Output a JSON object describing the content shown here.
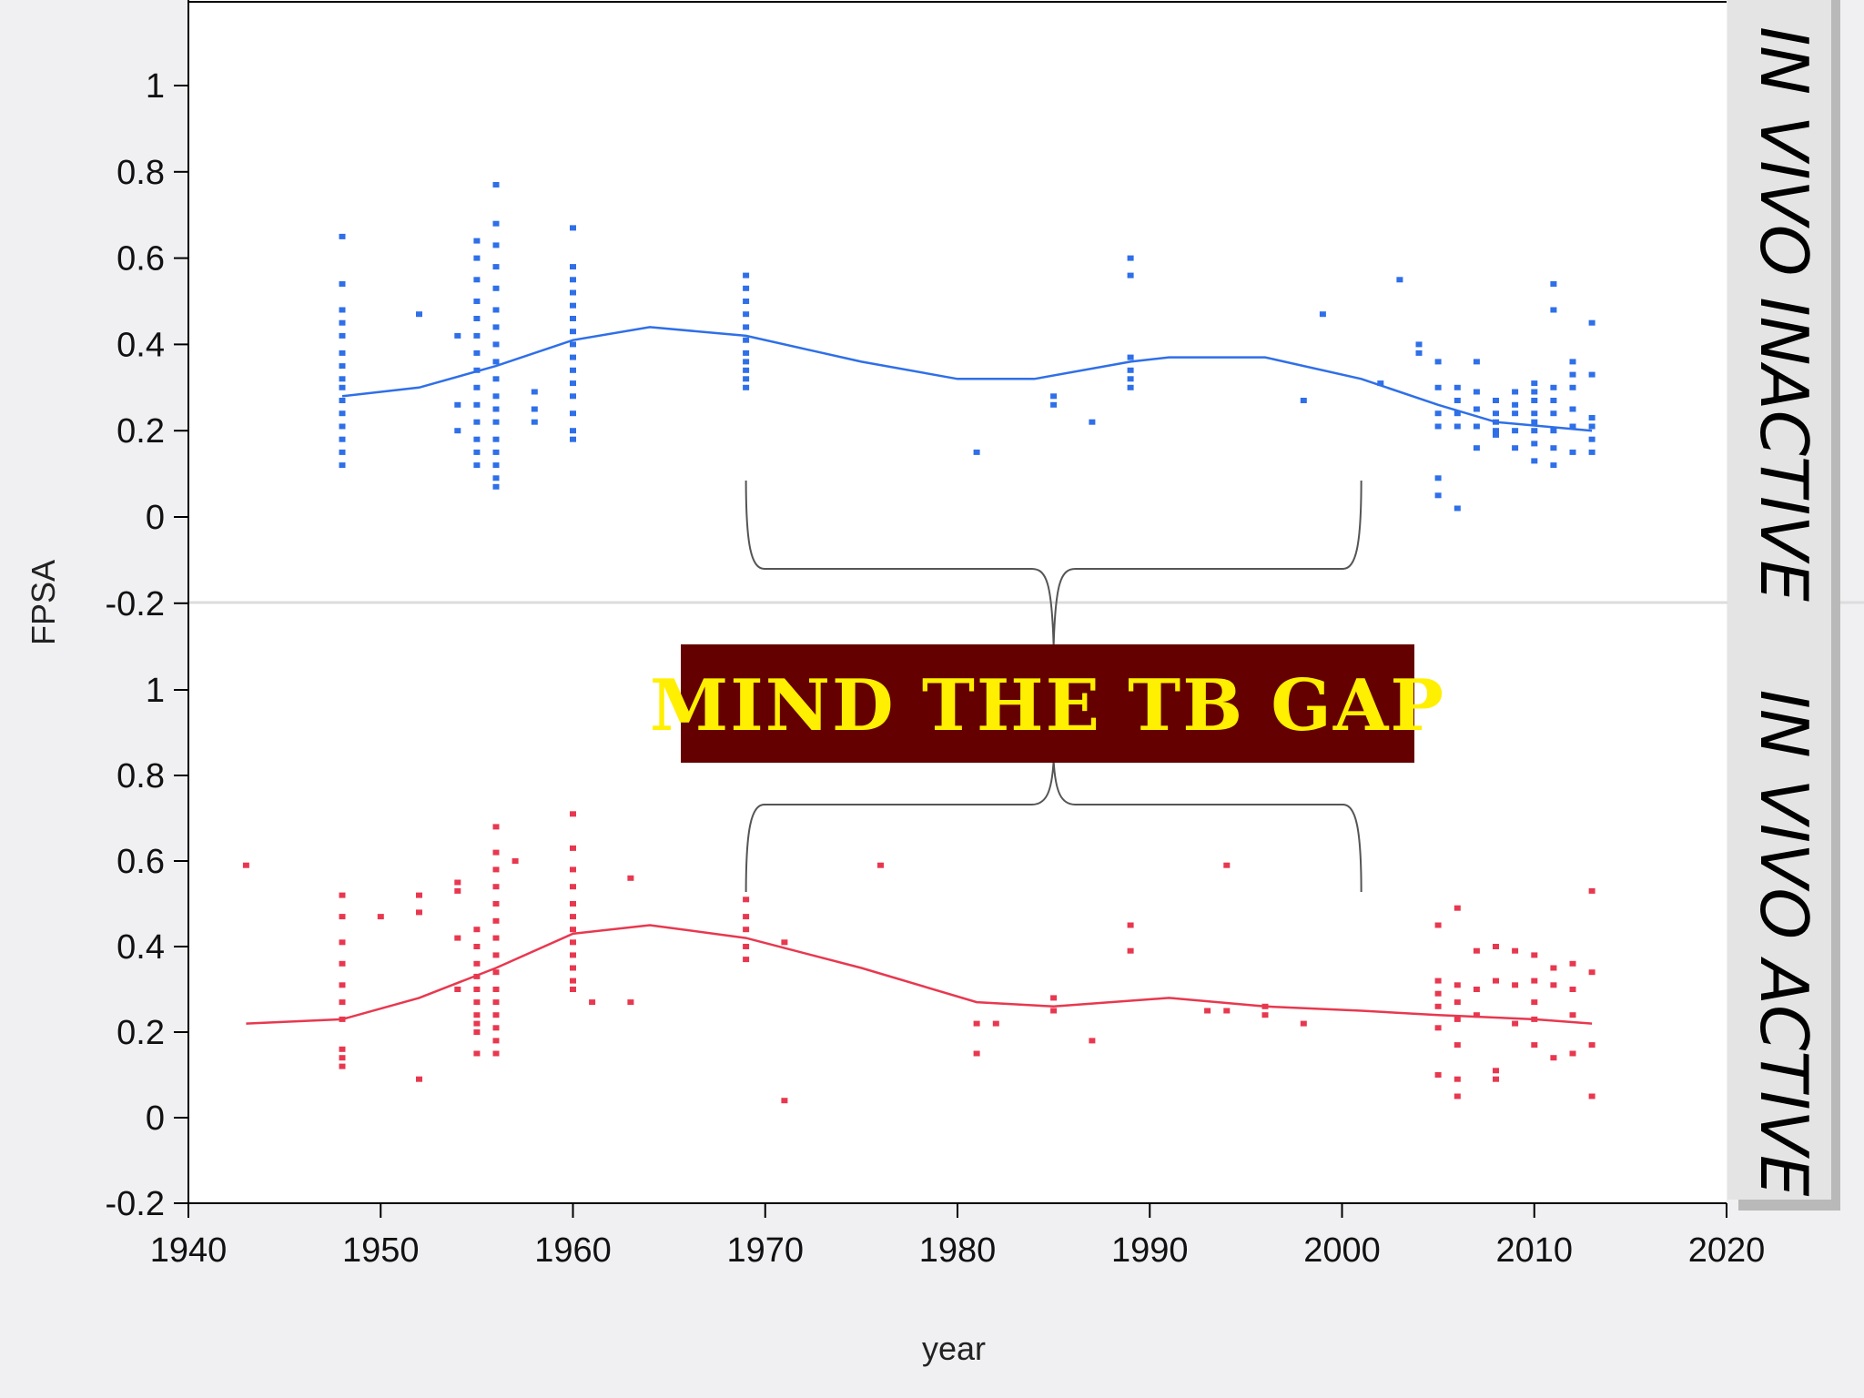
{
  "chart_data": {
    "type": "scatter",
    "xlabel": "year",
    "ylabel": "FPSA",
    "xlim": [
      1940,
      2020
    ],
    "x_ticks": [
      "1940",
      "1950",
      "1960",
      "1970",
      "1980",
      "1990",
      "2000",
      "2010",
      "2020"
    ],
    "y_ticks": [
      "-0.2",
      "0",
      "0.2",
      "0.4",
      "0.6",
      "0.8",
      "1"
    ],
    "grid": false,
    "annotation": "MIND THE TB GAP",
    "annotation_gap_years": [
      1969,
      2001
    ],
    "panels": [
      {
        "label": "IN VIVO INACTIVE",
        "color": "#2f6fe8",
        "ylim": [
          -0.2,
          1.2
        ],
        "trend": {
          "x": [
            1948,
            1952,
            1956,
            1960,
            1964,
            1969,
            1975,
            1980,
            1984,
            1989,
            1991,
            1996,
            2001,
            2005,
            2008,
            2013
          ],
          "y": [
            0.28,
            0.3,
            0.35,
            0.41,
            0.44,
            0.42,
            0.36,
            0.32,
            0.32,
            0.36,
            0.37,
            0.37,
            0.32,
            0.26,
            0.22,
            0.2
          ]
        },
        "points": {
          "x": [
            1948,
            1948,
            1948,
            1948,
            1948,
            1948,
            1948,
            1948,
            1948,
            1948,
            1948,
            1948,
            1948,
            1948,
            1948,
            1952,
            1954,
            1954,
            1954,
            1955,
            1955,
            1955,
            1955,
            1955,
            1955,
            1955,
            1955,
            1955,
            1955,
            1955,
            1955,
            1955,
            1955,
            1956,
            1956,
            1956,
            1956,
            1956,
            1956,
            1956,
            1956,
            1956,
            1956,
            1956,
            1956,
            1956,
            1956,
            1956,
            1956,
            1956,
            1956,
            1958,
            1958,
            1958,
            1960,
            1960,
            1960,
            1960,
            1960,
            1960,
            1960,
            1960,
            1960,
            1960,
            1960,
            1960,
            1960,
            1960,
            1960,
            1969,
            1969,
            1969,
            1969,
            1969,
            1969,
            1969,
            1969,
            1969,
            1969,
            1969,
            1981,
            1985,
            1985,
            1987,
            1989,
            1989,
            1989,
            1989,
            1989,
            1989,
            1998,
            1999,
            2002,
            2003,
            2004,
            2004,
            2005,
            2005,
            2005,
            2005,
            2005,
            2005,
            2006,
            2006,
            2006,
            2006,
            2006,
            2007,
            2007,
            2007,
            2007,
            2007,
            2008,
            2008,
            2008,
            2008,
            2008,
            2009,
            2009,
            2009,
            2009,
            2009,
            2010,
            2010,
            2010,
            2010,
            2010,
            2010,
            2010,
            2010,
            2011,
            2011,
            2011,
            2011,
            2011,
            2011,
            2011,
            2011,
            2012,
            2012,
            2012,
            2012,
            2012,
            2012,
            2013,
            2013,
            2013,
            2013,
            2013,
            2013
          ],
          "y": [
            0.65,
            0.54,
            0.48,
            0.45,
            0.42,
            0.38,
            0.35,
            0.32,
            0.3,
            0.27,
            0.24,
            0.21,
            0.18,
            0.15,
            0.12,
            0.47,
            0.42,
            0.26,
            0.2,
            0.64,
            0.6,
            0.55,
            0.5,
            0.46,
            0.42,
            0.38,
            0.34,
            0.3,
            0.26,
            0.22,
            0.18,
            0.15,
            0.12,
            0.77,
            0.68,
            0.63,
            0.58,
            0.53,
            0.48,
            0.44,
            0.4,
            0.36,
            0.32,
            0.28,
            0.25,
            0.22,
            0.18,
            0.15,
            0.12,
            0.09,
            0.07,
            0.29,
            0.25,
            0.22,
            0.67,
            0.58,
            0.55,
            0.52,
            0.49,
            0.46,
            0.43,
            0.4,
            0.37,
            0.34,
            0.31,
            0.28,
            0.24,
            0.2,
            0.18,
            0.56,
            0.53,
            0.5,
            0.47,
            0.44,
            0.41,
            0.38,
            0.36,
            0.34,
            0.32,
            0.3,
            0.15,
            0.28,
            0.26,
            0.22,
            0.6,
            0.56,
            0.37,
            0.34,
            0.32,
            0.3,
            0.27,
            0.47,
            0.31,
            0.55,
            0.4,
            0.38,
            0.36,
            0.3,
            0.24,
            0.21,
            0.09,
            0.05,
            0.3,
            0.27,
            0.24,
            0.21,
            0.02,
            0.36,
            0.29,
            0.25,
            0.21,
            0.16,
            0.27,
            0.24,
            0.22,
            0.2,
            0.19,
            0.29,
            0.26,
            0.24,
            0.2,
            0.16,
            0.31,
            0.29,
            0.27,
            0.24,
            0.22,
            0.2,
            0.17,
            0.13,
            0.54,
            0.48,
            0.3,
            0.27,
            0.24,
            0.2,
            0.16,
            0.12,
            0.36,
            0.33,
            0.3,
            0.25,
            0.21,
            0.15,
            0.45,
            0.33,
            0.23,
            0.21,
            0.18,
            0.15
          ]
        }
      },
      {
        "label": "IN VIVO ACTIVE",
        "color": "#e8384f",
        "ylim": [
          -0.2,
          1.2
        ],
        "trend": {
          "x": [
            1943,
            1948,
            1952,
            1956,
            1960,
            1964,
            1969,
            1975,
            1981,
            1985,
            1991,
            1996,
            2001,
            2005,
            2010,
            2013
          ],
          "y": [
            0.22,
            0.23,
            0.28,
            0.35,
            0.43,
            0.45,
            0.42,
            0.35,
            0.27,
            0.26,
            0.28,
            0.26,
            0.25,
            0.24,
            0.23,
            0.22
          ]
        },
        "points": {
          "x": [
            1943,
            1948,
            1948,
            1948,
            1948,
            1948,
            1948,
            1948,
            1948,
            1948,
            1948,
            1950,
            1952,
            1952,
            1952,
            1954,
            1954,
            1954,
            1954,
            1955,
            1955,
            1955,
            1955,
            1955,
            1955,
            1955,
            1955,
            1955,
            1955,
            1956,
            1956,
            1956,
            1956,
            1956,
            1956,
            1956,
            1956,
            1956,
            1956,
            1956,
            1956,
            1956,
            1956,
            1956,
            1957,
            1960,
            1960,
            1960,
            1960,
            1960,
            1960,
            1960,
            1960,
            1960,
            1960,
            1960,
            1960,
            1961,
            1963,
            1963,
            1969,
            1969,
            1969,
            1969,
            1969,
            1971,
            1971,
            1976,
            1981,
            1981,
            1982,
            1985,
            1985,
            1987,
            1989,
            1989,
            1993,
            1994,
            1994,
            1996,
            1996,
            1998,
            2005,
            2005,
            2005,
            2005,
            2005,
            2005,
            2006,
            2006,
            2006,
            2006,
            2006,
            2006,
            2006,
            2007,
            2007,
            2007,
            2008,
            2008,
            2008,
            2008,
            2009,
            2009,
            2009,
            2010,
            2010,
            2010,
            2010,
            2010,
            2011,
            2011,
            2011,
            2012,
            2012,
            2012,
            2012,
            2013,
            2013,
            2013,
            2013
          ],
          "y": [
            0.59,
            0.52,
            0.47,
            0.41,
            0.36,
            0.31,
            0.27,
            0.23,
            0.16,
            0.14,
            0.12,
            0.47,
            0.52,
            0.48,
            0.09,
            0.55,
            0.53,
            0.42,
            0.3,
            0.44,
            0.4,
            0.36,
            0.33,
            0.3,
            0.27,
            0.24,
            0.22,
            0.2,
            0.15,
            0.68,
            0.62,
            0.58,
            0.54,
            0.5,
            0.46,
            0.42,
            0.38,
            0.34,
            0.3,
            0.27,
            0.24,
            0.21,
            0.18,
            0.15,
            0.6,
            0.71,
            0.63,
            0.58,
            0.54,
            0.5,
            0.47,
            0.44,
            0.41,
            0.38,
            0.35,
            0.32,
            0.3,
            0.27,
            0.56,
            0.27,
            0.51,
            0.47,
            0.44,
            0.4,
            0.37,
            0.41,
            0.04,
            0.59,
            0.22,
            0.15,
            0.22,
            0.28,
            0.25,
            0.18,
            0.45,
            0.39,
            0.25,
            0.59,
            0.25,
            0.24,
            0.26,
            0.22,
            0.45,
            0.32,
            0.29,
            0.26,
            0.21,
            0.1,
            0.49,
            0.31,
            0.27,
            0.23,
            0.17,
            0.09,
            0.05,
            0.39,
            0.3,
            0.24,
            0.4,
            0.32,
            0.11,
            0.09,
            0.39,
            0.31,
            0.22,
            0.38,
            0.32,
            0.27,
            0.23,
            0.17,
            0.35,
            0.31,
            0.14,
            0.36,
            0.3,
            0.24,
            0.15,
            0.53,
            0.34,
            0.17,
            0.05
          ]
        }
      }
    ]
  }
}
